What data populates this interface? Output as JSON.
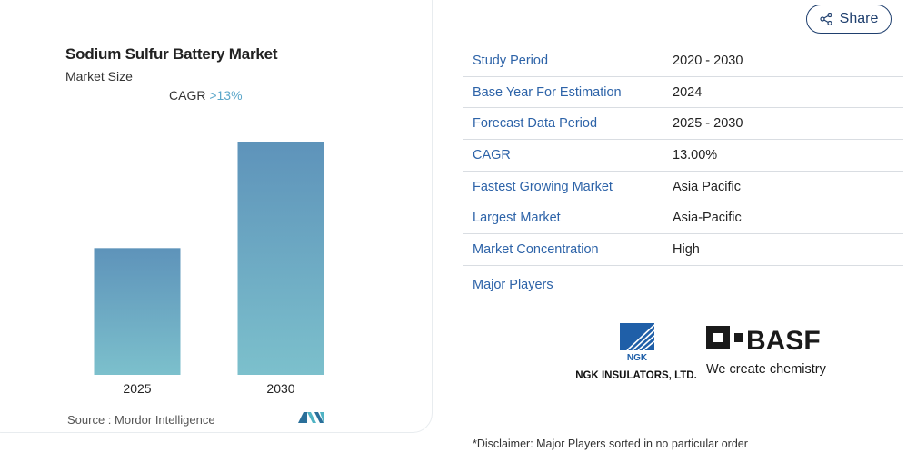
{
  "left_panel": {
    "title": "Sodium Sulfur Battery Market",
    "subtitle": "Market Size",
    "cagr_label": "CAGR",
    "cagr_value": ">13%",
    "source": "Source : Mordor Intelligence"
  },
  "chart_data": {
    "type": "bar",
    "categories": [
      "2025",
      "2030"
    ],
    "values": [
      1.0,
      1.84
    ],
    "xlabel": "",
    "ylabel": "",
    "grid": false,
    "bar_color_top": "#5e93ba",
    "bar_color_bottom": "#7cc0cc"
  },
  "share": {
    "label": "Share"
  },
  "table": {
    "rows": [
      {
        "key": "Study Period",
        "value": "2020 - 2030"
      },
      {
        "key": "Base Year For Estimation",
        "value": "2024"
      },
      {
        "key": "Forecast Data Period",
        "value": "2025 - 2030"
      },
      {
        "key": "CAGR",
        "value": "13.00%"
      },
      {
        "key": "Fastest Growing Market",
        "value": "Asia Pacific"
      },
      {
        "key": "Largest Market",
        "value": "Asia-Pacific"
      },
      {
        "key": "Market Concentration",
        "value": "High"
      }
    ]
  },
  "major_players": {
    "label": "Major Players",
    "logos": [
      {
        "icon": "ngk-logo",
        "text": "NGK",
        "caption": "NGK INSULATORS, LTD."
      },
      {
        "icon": "basf-logo",
        "text": "BASF",
        "caption": "We create chemistry"
      }
    ]
  },
  "disclaimer": "*Disclaimer: Major Players sorted in no particular order",
  "colors": {
    "accent_blue": "#2d63a8",
    "cagr_blue": "#5aa6c9",
    "share_border": "#1f3f6e"
  }
}
